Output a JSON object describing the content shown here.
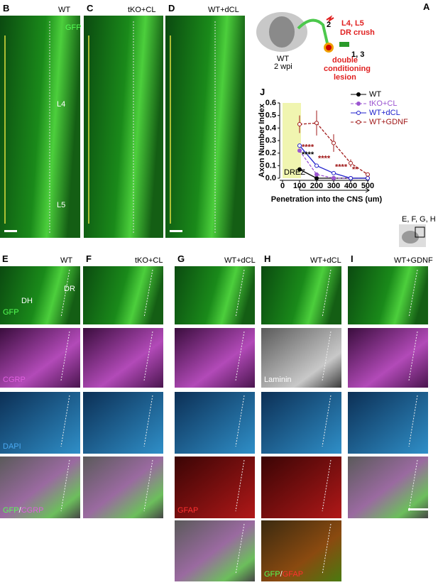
{
  "figure": {
    "top": {
      "B": "B",
      "C": "C",
      "D": "D",
      "WT": "WT",
      "tKO": "tKO+CL",
      "dCL": "WT+dCL",
      "gfp": "GFP",
      "l4": "L4",
      "l5": "L5"
    },
    "schematic": {
      "A": "A",
      "levels": "L4, L5",
      "crush": "DR crush",
      "step2": "2",
      "step13": "1, 3",
      "lesion1": "double",
      "lesion2": "conditioning",
      "lesion3": "lesion",
      "wt": "WT",
      "wpi": "2 wpi"
    },
    "J": "J",
    "inset": "E, F, G, H",
    "bottom": {
      "E": "E",
      "F": "F",
      "G": "G",
      "H": "H",
      "I": "I",
      "WT": "WT",
      "tKO": "tKO+CL",
      "dCL1": "WT+dCL",
      "dCL2": "WT+dCL",
      "gdnf": "WT+GDNF",
      "dh": "DH",
      "dr": "DR",
      "gfp": "GFP",
      "cgrp": "CGRP",
      "dapi": "DAPI",
      "laminin": "Laminin",
      "gfap": "GFAP",
      "m1a": "GFP",
      "m1b": "/",
      "m1c": "CGRP",
      "m2a": "GFP",
      "m2b": "/",
      "m2c": "GFAP"
    }
  },
  "chart_data": {
    "type": "line",
    "y_label": "Axon  Number Index",
    "x_label": "Penetration into the CNS (um)",
    "region": "DREZ",
    "x": [
      100,
      200,
      300,
      400,
      500
    ],
    "xlim": [
      0,
      500
    ],
    "xticks": [
      0,
      100,
      200,
      300,
      400,
      500
    ],
    "ylim": [
      0,
      0.6
    ],
    "yticks": [
      {
        "value": 0,
        "label": "0.0"
      },
      {
        "value": 0.1,
        "label": "0.1"
      },
      {
        "value": 0.2,
        "label": "0.2"
      },
      {
        "value": 0.3,
        "label": "0.3"
      },
      {
        "value": 0.4,
        "label": "0.4"
      },
      {
        "value": 0.5,
        "label": "0.5"
      },
      {
        "value": 0.6,
        "label": "0.6"
      }
    ],
    "annotations": [
      "****",
      "****",
      "****",
      "****",
      "**"
    ],
    "series": [
      {
        "name": "WT",
        "color": "#000000",
        "dashed": false,
        "values": [
          0.07,
          0,
          0,
          0,
          0
        ]
      },
      {
        "name": "tKO+CL",
        "color": "#9b55d0",
        "dashed": true,
        "values": [
          0.22,
          0.03,
          0,
          0,
          0
        ]
      },
      {
        "name": "WT+dCL",
        "color": "#2020cc",
        "dashed": false,
        "values": [
          0.26,
          0.1,
          0.04,
          0,
          0
        ]
      },
      {
        "name": "WT+GDNF",
        "color": "#a01818",
        "dashed": true,
        "values": [
          0.43,
          0.44,
          0.28,
          0.12,
          0.03
        ],
        "errors": [
          0.07,
          0.1,
          0.07,
          0.03,
          0.01
        ]
      }
    ]
  }
}
